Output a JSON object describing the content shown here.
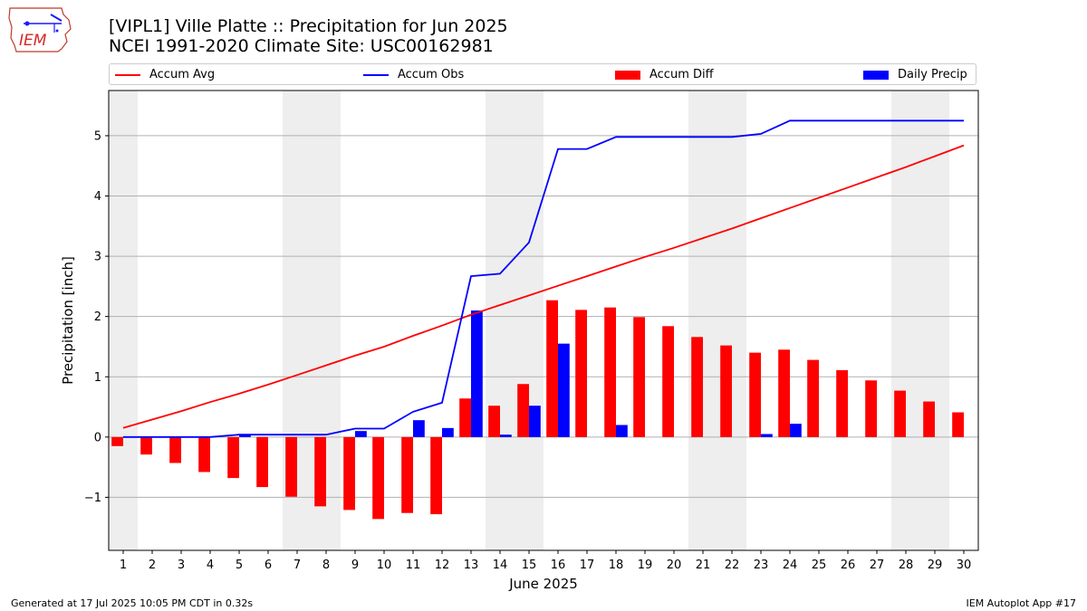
{
  "header": {
    "title_line1": "[VIPL1] Ville Platte :: Precipitation for Jun 2025",
    "title_line2": "NCEI 1991-2020 Climate Site: USC00162981"
  },
  "logo": {
    "text": "IEM",
    "icon": "iem-iowa-logo-icon"
  },
  "legend": {
    "placement": "top",
    "items": [
      {
        "label": "Accum Avg",
        "color": "#ff0000",
        "kind": "line"
      },
      {
        "label": "Accum Obs",
        "color": "#0000ff",
        "kind": "line"
      },
      {
        "label": "Accum Diff",
        "color": "#ff0000",
        "kind": "bar"
      },
      {
        "label": "Daily Precip",
        "color": "#0000ff",
        "kind": "bar"
      }
    ]
  },
  "chart_data": {
    "type": "bar",
    "title": "[VIPL1] Ville Platte :: Precipitation for Jun 2025",
    "subtitle": "NCEI 1991-2020 Climate Site: USC00162981",
    "xlabel": "June 2025",
    "ylabel": "Precipitation [inch]",
    "ylim": [
      -1.88,
      5.75
    ],
    "yticks": [
      -1,
      0,
      1,
      2,
      3,
      4,
      5
    ],
    "ytick_labels": [
      "−1",
      "0",
      "1",
      "2",
      "3",
      "4",
      "5"
    ],
    "grid": true,
    "weekend_shading_days": [
      1,
      7,
      8,
      14,
      15,
      21,
      22,
      28,
      29
    ],
    "categories": [
      1,
      2,
      3,
      4,
      5,
      6,
      7,
      8,
      9,
      10,
      11,
      12,
      13,
      14,
      15,
      16,
      17,
      18,
      19,
      20,
      21,
      22,
      23,
      24,
      25,
      26,
      27,
      28,
      29,
      30
    ],
    "series": [
      {
        "name": "Accum Avg",
        "type": "line",
        "color": "#ff0000",
        "values": [
          0.15,
          0.29,
          0.43,
          0.58,
          0.72,
          0.87,
          1.03,
          1.19,
          1.35,
          1.5,
          1.68,
          1.85,
          2.03,
          2.19,
          2.35,
          2.51,
          2.67,
          2.83,
          2.99,
          3.14,
          3.3,
          3.46,
          3.63,
          3.8,
          3.97,
          4.14,
          4.31,
          4.48,
          4.66,
          4.84
        ]
      },
      {
        "name": "Accum Obs",
        "type": "line",
        "color": "#0000ff",
        "values": [
          0,
          0,
          0,
          0,
          0.04,
          0.04,
          0.04,
          0.04,
          0.14,
          0.14,
          0.42,
          0.57,
          2.67,
          2.71,
          3.23,
          4.78,
          4.78,
          4.98,
          4.98,
          4.98,
          4.98,
          4.98,
          5.03,
          5.25,
          5.25,
          5.25,
          5.25,
          5.25,
          5.25,
          5.25
        ]
      },
      {
        "name": "Accum Diff",
        "type": "bar",
        "color": "#ff0000",
        "values": [
          -0.15,
          -0.29,
          -0.43,
          -0.58,
          -0.68,
          -0.83,
          -0.99,
          -1.15,
          -1.21,
          -1.36,
          -1.26,
          -1.28,
          0.64,
          0.52,
          0.88,
          2.27,
          2.11,
          2.15,
          1.99,
          1.84,
          1.66,
          1.52,
          1.4,
          1.45,
          1.28,
          1.11,
          0.94,
          0.77,
          0.59,
          0.41
        ]
      },
      {
        "name": "Daily Precip",
        "type": "bar",
        "color": "#0000ff",
        "values": [
          0,
          0,
          0,
          0,
          0.04,
          0,
          0,
          0,
          0.1,
          0,
          0.28,
          0.15,
          2.1,
          0.04,
          0.52,
          1.55,
          0,
          0.2,
          0,
          0,
          0,
          0,
          0.05,
          0.22,
          0,
          0,
          0,
          0,
          0,
          0
        ]
      }
    ]
  },
  "footer": {
    "generated": "Generated at 17 Jul 2025 10:05 PM CDT in 0.32s",
    "app": "IEM Autoplot App #17"
  }
}
